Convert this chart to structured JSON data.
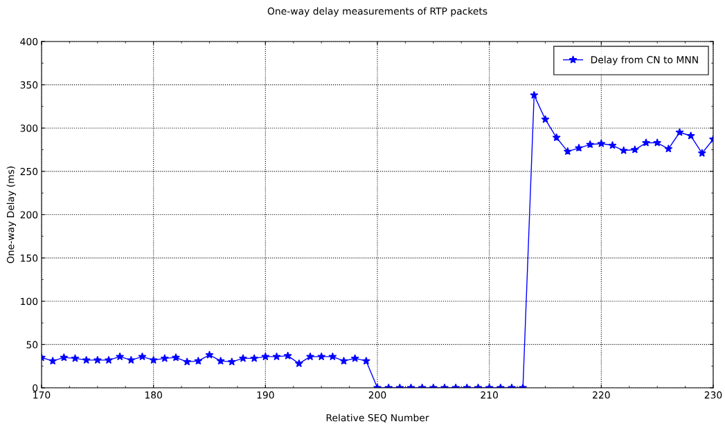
{
  "chart_data": {
    "type": "line",
    "title": "One-way delay measurements of RTP packets",
    "xlabel": "Relative SEQ Number",
    "ylabel": "One-way Delay (ms)",
    "x": [
      170,
      171,
      172,
      173,
      174,
      175,
      176,
      177,
      178,
      179,
      180,
      181,
      182,
      183,
      184,
      185,
      186,
      187,
      188,
      189,
      190,
      191,
      192,
      193,
      194,
      195,
      196,
      197,
      198,
      199,
      200,
      201,
      202,
      203,
      204,
      205,
      206,
      207,
      208,
      209,
      210,
      211,
      212,
      213,
      214,
      215,
      216,
      217,
      218,
      219,
      220,
      221,
      222,
      223,
      224,
      225,
      226,
      227,
      228,
      229,
      230
    ],
    "series": [
      {
        "name": "Delay from CN to MNN",
        "color": "#0000ff",
        "values": [
          35,
          31,
          35,
          34,
          32,
          32,
          32,
          36,
          32,
          36,
          32,
          34,
          35,
          30,
          31,
          38,
          31,
          30,
          34,
          34,
          36,
          36,
          37,
          28,
          36,
          36,
          36,
          31,
          34,
          31,
          0,
          0,
          0,
          0,
          0,
          0,
          0,
          0,
          0,
          0,
          0,
          0,
          0,
          0,
          338,
          310,
          289,
          273,
          277,
          281,
          282,
          280,
          274,
          275,
          283,
          283,
          276,
          295,
          291,
          271,
          287
        ]
      }
    ],
    "xlim": [
      170,
      230
    ],
    "xticks": [
      170,
      180,
      190,
      200,
      210,
      220,
      230
    ],
    "ylim": [
      0,
      400
    ],
    "yticks": [
      0,
      50,
      100,
      150,
      200,
      250,
      300,
      350,
      400
    ],
    "grid": true,
    "legend": "top right",
    "marker": "star",
    "line_style": "solid"
  }
}
